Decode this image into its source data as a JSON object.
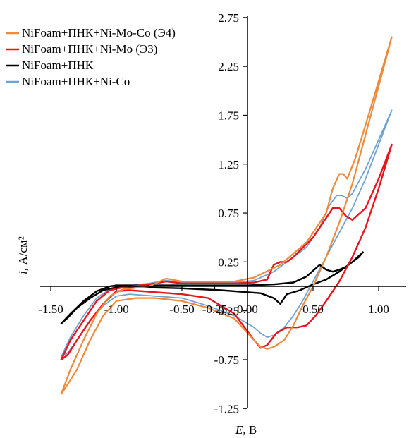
{
  "chart_data": {
    "type": "line",
    "xlabel_var": "E",
    "xlabel_unit": ", В",
    "ylabel_var": "i",
    "ylabel_unit": ", А/см²",
    "xlim": [
      -1.5,
      1.1
    ],
    "ylim": [
      -1.25,
      2.75
    ],
    "xticks": [
      "-1.50",
      "-1.00",
      "-0.50",
      "-0.25",
      "0.00",
      "0.50",
      "1.00"
    ],
    "xtick_values": [
      -1.5,
      -1.0,
      -0.5,
      -0.25,
      0.0,
      0.5,
      1.0
    ],
    "yticks": [
      "2.75",
      "2.25",
      "1.75",
      "1.25",
      "0.75",
      "0.25",
      "-0.25",
      "-0.75",
      "-1.25"
    ],
    "ytick_values": [
      2.75,
      2.25,
      1.75,
      1.25,
      0.75,
      0.25,
      -0.25,
      -0.75,
      -1.25
    ],
    "legend_position": "top-left",
    "series": [
      {
        "name": "NiFoam+ПНК+Ni-Mo-Co (Э4)",
        "color": "#ed8a3d",
        "width": 2.2,
        "x": [
          -1.42,
          -1.35,
          -1.25,
          -1.15,
          -1.05,
          -0.95,
          -0.75,
          -0.62,
          -0.5,
          -0.4,
          -0.1,
          0.05,
          0.25,
          0.45,
          0.6,
          0.65,
          0.7,
          0.73,
          0.76,
          0.82,
          0.9,
          1.0,
          1.1,
          1.1,
          1.0,
          0.9,
          0.8,
          0.7,
          0.6,
          0.5,
          0.42,
          0.35,
          0.28,
          0.2,
          0.15,
          0.1,
          0.05,
          -0.1,
          -0.3,
          -0.5,
          -0.7,
          -0.85,
          -1.0,
          -1.1,
          -1.2,
          -1.3,
          -1.37,
          -1.42
        ],
        "y": [
          -1.1,
          -0.85,
          -0.55,
          -0.28,
          -0.1,
          -0.03,
          0.0,
          0.08,
          0.05,
          0.05,
          0.05,
          0.09,
          0.22,
          0.45,
          0.75,
          1.0,
          1.15,
          1.15,
          1.1,
          1.3,
          1.65,
          2.1,
          2.55,
          2.55,
          2.05,
          1.55,
          1.05,
          0.65,
          0.3,
          0.0,
          -0.2,
          -0.4,
          -0.55,
          -0.62,
          -0.64,
          -0.62,
          -0.55,
          -0.33,
          -0.22,
          -0.15,
          -0.12,
          -0.12,
          -0.15,
          -0.3,
          -0.55,
          -0.85,
          -1.0,
          -1.1
        ]
      },
      {
        "name": "NiFoam+ПНК+Ni-Mo (Э3)",
        "color": "#e8151f",
        "width": 2.4,
        "x": [
          -1.42,
          -1.35,
          -1.25,
          -1.15,
          -1.05,
          -0.95,
          -0.75,
          -0.62,
          -0.5,
          -0.4,
          -0.1,
          0.05,
          0.15,
          0.2,
          0.25,
          0.3,
          0.35,
          0.5,
          0.6,
          0.65,
          0.7,
          0.75,
          0.8,
          0.9,
          1.0,
          1.1,
          1.1,
          1.0,
          0.9,
          0.8,
          0.7,
          0.6,
          0.52,
          0.45,
          0.38,
          0.3,
          0.22,
          0.15,
          0.1,
          0.05,
          -0.1,
          -0.3,
          -0.5,
          -0.7,
          -0.9,
          -1.0,
          -1.1,
          -1.2,
          -1.3,
          -1.37,
          -1.42
        ],
        "y": [
          -0.75,
          -0.55,
          -0.35,
          -0.15,
          -0.04,
          -0.01,
          0.02,
          0.05,
          0.03,
          0.03,
          0.03,
          0.04,
          0.07,
          0.22,
          0.25,
          0.25,
          0.3,
          0.5,
          0.7,
          0.8,
          0.8,
          0.72,
          0.68,
          0.8,
          1.1,
          1.45,
          1.45,
          1.0,
          0.6,
          0.3,
          0.05,
          -0.15,
          -0.3,
          -0.4,
          -0.42,
          -0.42,
          -0.48,
          -0.6,
          -0.63,
          -0.55,
          -0.28,
          -0.12,
          -0.08,
          -0.06,
          -0.04,
          -0.05,
          -0.18,
          -0.35,
          -0.55,
          -0.7,
          -0.75
        ]
      },
      {
        "name": "NiFoam+ПНК",
        "color": "#000000",
        "width": 2.4,
        "x": [
          -1.42,
          -1.35,
          -1.25,
          -1.15,
          -1.05,
          -1.0,
          -0.8,
          -0.6,
          -0.4,
          -0.2,
          0.0,
          0.2,
          0.35,
          0.45,
          0.55,
          0.6,
          0.65,
          0.7,
          0.75,
          0.8,
          0.85,
          0.88,
          0.88,
          0.8,
          0.7,
          0.6,
          0.5,
          0.4,
          0.3,
          0.25,
          0.2,
          0.1,
          0.0,
          -0.2,
          -0.5,
          -0.8,
          -1.0,
          -1.1,
          -1.2,
          -1.3,
          -1.37,
          -1.42
        ],
        "y": [
          -0.38,
          -0.28,
          -0.15,
          -0.05,
          0.0,
          0.01,
          0.01,
          0.01,
          0.01,
          0.01,
          0.01,
          0.02,
          0.04,
          0.1,
          0.22,
          0.17,
          0.15,
          0.17,
          0.2,
          0.25,
          0.3,
          0.35,
          0.35,
          0.25,
          0.15,
          0.07,
          0.02,
          -0.04,
          -0.08,
          -0.18,
          -0.12,
          -0.07,
          -0.06,
          -0.04,
          -0.02,
          -0.01,
          -0.01,
          -0.04,
          -0.12,
          -0.22,
          -0.32,
          -0.38
        ]
      },
      {
        "name": "NiFoam+ПНК+Ni-Co",
        "color": "#6fa3d1",
        "width": 1.8,
        "x": [
          -1.42,
          -1.35,
          -1.25,
          -1.15,
          -1.05,
          -0.95,
          -0.75,
          -0.62,
          -0.5,
          -0.4,
          -0.1,
          0.05,
          0.2,
          0.3,
          0.45,
          0.55,
          0.62,
          0.68,
          0.72,
          0.76,
          0.8,
          0.9,
          1.0,
          1.1,
          1.1,
          1.0,
          0.9,
          0.8,
          0.7,
          0.6,
          0.5,
          0.42,
          0.35,
          0.28,
          0.2,
          0.15,
          0.1,
          0.05,
          -0.1,
          -0.3,
          -0.5,
          -0.7,
          -0.9,
          -1.0,
          -1.1,
          -1.2,
          -1.3,
          -1.37,
          -1.42
        ],
        "y": [
          -0.72,
          -0.52,
          -0.3,
          -0.12,
          -0.03,
          0.0,
          0.03,
          0.06,
          0.04,
          0.04,
          0.04,
          0.06,
          0.15,
          0.25,
          0.4,
          0.6,
          0.82,
          0.93,
          0.93,
          0.9,
          0.95,
          1.2,
          1.5,
          1.8,
          1.8,
          1.45,
          1.1,
          0.8,
          0.55,
          0.3,
          0.05,
          -0.15,
          -0.3,
          -0.42,
          -0.5,
          -0.52,
          -0.48,
          -0.42,
          -0.3,
          -0.2,
          -0.12,
          -0.1,
          -0.08,
          -0.1,
          -0.2,
          -0.35,
          -0.55,
          -0.68,
          -0.72
        ]
      }
    ]
  }
}
